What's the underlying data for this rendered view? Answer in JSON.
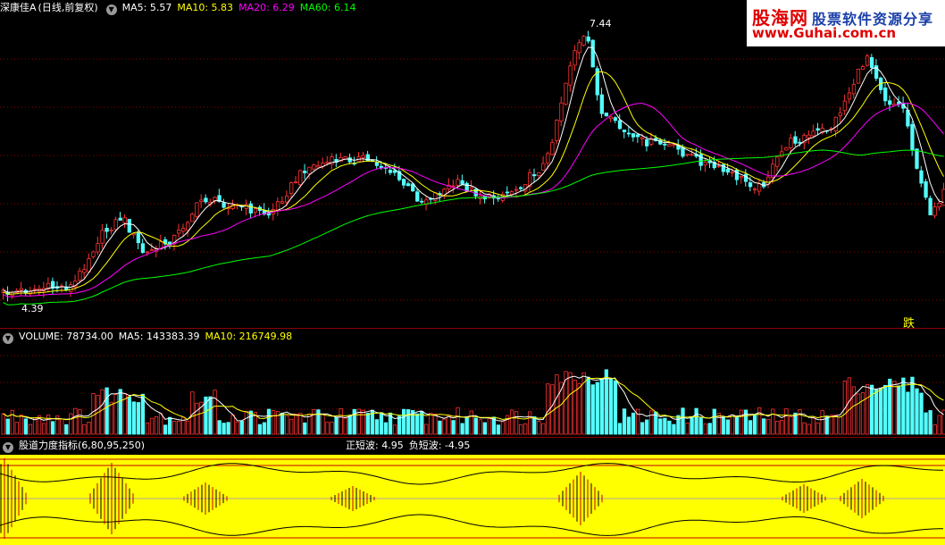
{
  "price_panel": {
    "stock_name": "深康佳A",
    "adjust_mode": "(日线,前复权)",
    "ma": [
      {
        "label": "MA5: 5.57",
        "color": "#ffffff"
      },
      {
        "label": "MA10: 5.83",
        "color": "#ffff00"
      },
      {
        "label": "MA20: 6.29",
        "color": "#ff00ff"
      },
      {
        "label": "MA60: 6.14",
        "color": "#00ff00"
      }
    ],
    "high_label": "7.44",
    "low_label": "4.39",
    "signal_label": "跌",
    "colors": {
      "up": "#ff3232",
      "down": "#54ffff",
      "grid": "#8b0000"
    }
  },
  "volume_panel": {
    "title": "VOLUME: 78734.00",
    "ma5": "MA5: 143383.39",
    "ma10": "MA10: 216749.98"
  },
  "indicator_panel": {
    "title": "股道力度指标(6,80,95,250)",
    "pos_wave": "正短波: 4.95",
    "neg_wave": "负短波: -4.95",
    "background": "#ffff00"
  },
  "watermark": {
    "brand": "股海网",
    "slogan": "股票软件资源分享",
    "url": "www.Guhai.com.cn"
  },
  "chart_data": {
    "type": "candlestick",
    "series": [
      {
        "name": "MA5",
        "value": 5.57
      },
      {
        "name": "MA10",
        "value": 5.83
      },
      {
        "name": "MA20",
        "value": 6.29
      },
      {
        "name": "MA60",
        "value": 6.14
      }
    ],
    "price_high": 7.44,
    "price_low": 4.39,
    "volume_last": 78734.0,
    "volume_ma5": 143383.39,
    "volume_ma10": 216749.98,
    "indicator_params": [
      6,
      80,
      95,
      250
    ],
    "pos_wave": 4.95,
    "neg_wave": -4.95
  }
}
